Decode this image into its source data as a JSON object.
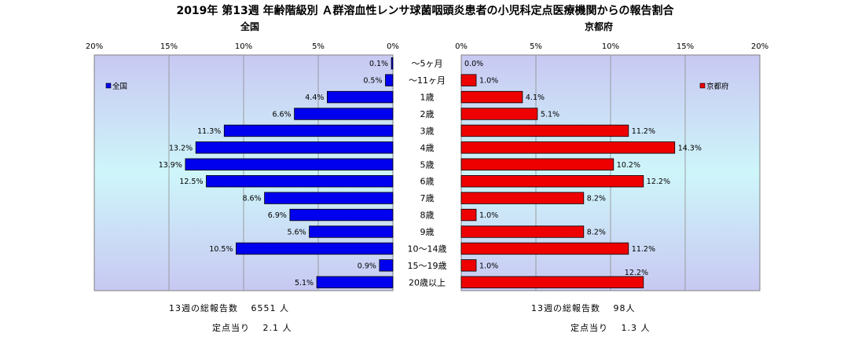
{
  "chart_data": {
    "type": "bar",
    "title": "2019年 第13週 年齢階級別 Ａ群溶血性レンサ球菌咽頭炎患者の小児科定点医療機関からの報告割合",
    "categories": [
      "～5ヶ月",
      "～11ヶ月",
      "1歳",
      "2歳",
      "3歳",
      "4歳",
      "5歳",
      "6歳",
      "7歳",
      "8歳",
      "9歳",
      "10～14歳",
      "15～19歳",
      "20歳以上"
    ],
    "xlim": [
      0,
      20
    ],
    "ticks": [
      "20%",
      "15%",
      "10%",
      "5%",
      "0%"
    ],
    "ticks_right": [
      "0%",
      "5%",
      "10%",
      "15%",
      "20%"
    ],
    "grid": true,
    "series": [
      {
        "name": "全国",
        "color": "#0000ee",
        "panel_title": "全国",
        "values": [
          0.1,
          0.5,
          4.4,
          6.6,
          11.3,
          13.2,
          13.9,
          12.5,
          8.6,
          6.9,
          5.6,
          10.5,
          0.9,
          5.1
        ],
        "labels": [
          "0.1%",
          "0.5%",
          "4.4%",
          "6.6%",
          "11.3%",
          "13.2%",
          "13.9%",
          "12.5%",
          "8.6%",
          "6.9%",
          "5.6%",
          "10.5%",
          "0.9%",
          "5.1%"
        ]
      },
      {
        "name": "京都府",
        "color": "#ee0000",
        "panel_title": "京都府",
        "values": [
          0.0,
          1.0,
          4.1,
          5.1,
          11.2,
          14.3,
          10.2,
          12.2,
          8.2,
          1.0,
          8.2,
          11.2,
          1.0,
          12.2
        ],
        "labels": [
          "0.0%",
          "1.0%",
          "4.1%",
          "5.1%",
          "11.2%",
          "14.3%",
          "10.2%",
          "12.2%",
          "8.2%",
          "1.0%",
          "8.2%",
          "11.2%",
          "1.0%",
          "12.2%"
        ]
      }
    ]
  },
  "footer": {
    "left_total": "13週の総報告数　 6551 人",
    "left_per": "定点当り　 2.1 人",
    "right_total": "13週の総報告数　 98人",
    "right_per": "定点当り　 1.3 人"
  }
}
